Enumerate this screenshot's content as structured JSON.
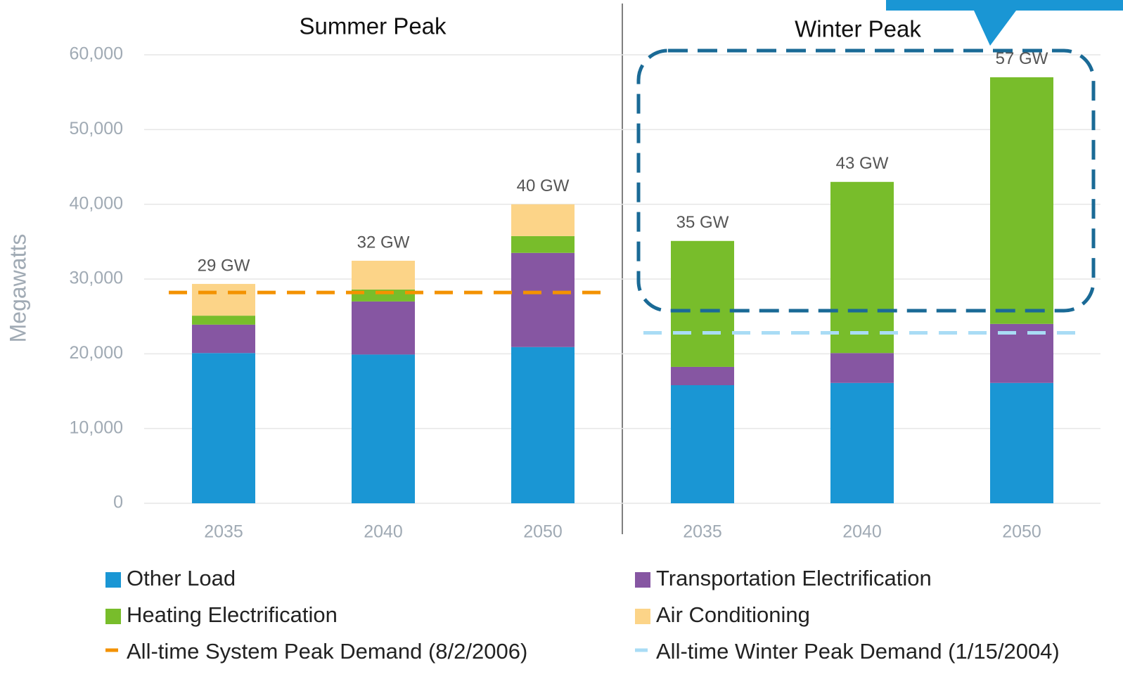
{
  "chart_data": {
    "type": "stacked_bar",
    "group_labels": [
      "Summer Peak",
      "Winter Peak"
    ],
    "y_label": "Megawatts",
    "categories": [
      "2035",
      "2040",
      "2050",
      "2035",
      "2040",
      "2050"
    ],
    "series": [
      {
        "name": "Other Load",
        "color": "#1a96d4",
        "values": [
          20100,
          19900,
          20900,
          15800,
          16100,
          16100
        ]
      },
      {
        "name": "Transportation Electrification",
        "color": "#8656a2",
        "values": [
          3800,
          7100,
          12600,
          2450,
          4000,
          7900
        ]
      },
      {
        "name": "Heating Electrification",
        "color": "#78bd2b",
        "values": [
          1200,
          1600,
          2250,
          16850,
          22900,
          33000
        ]
      },
      {
        "name": "Air Conditioning",
        "color": "#fcd488",
        "values": [
          4250,
          3850,
          4250,
          0,
          0,
          0
        ]
      }
    ],
    "totals": [
      29350,
      32450,
      40000,
      35100,
      43000,
      57000
    ],
    "total_labels": [
      "29 GW",
      "32 GW",
      "40 GW",
      "35 GW",
      "43 GW",
      "57 GW"
    ],
    "reference_lines": [
      {
        "name": "All-time System Peak Demand (8/2/2006)",
        "color": "#f39200",
        "value": 28200
      },
      {
        "name": "All-time Winter Peak Demand (1/15/2004)",
        "color": "#a9dcf5",
        "value": 22800
      }
    ],
    "ylim": [
      0,
      60000
    ],
    "yticks": [
      0,
      {
        "value": 10000,
        "label": "10,000"
      },
      {
        "value": 20000,
        "label": "20,000"
      },
      {
        "value": 30000,
        "label": "30,000"
      },
      {
        "value": 40000,
        "label": "40,000"
      },
      {
        "value": 50000,
        "label": "50,000"
      },
      {
        "value": 60000,
        "label": "60,000"
      }
    ],
    "grid": true
  }
}
